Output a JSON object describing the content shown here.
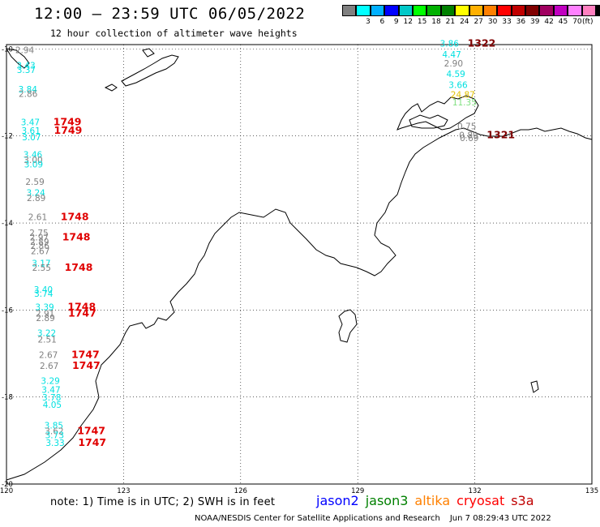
{
  "header": {
    "title": "12:00 – 23:59 UTC 06/05/2022",
    "subtitle": "12 hour collection of altimeter wave heights"
  },
  "legend": {
    "colors": [
      "#808080",
      "#00ffff",
      "#00b0ff",
      "#0000ff",
      "#00c8c8",
      "#00ff00",
      "#00b000",
      "#008000",
      "#ffff00",
      "#ffb000",
      "#ff8000",
      "#ff0000",
      "#c00000",
      "#800000",
      "#a00060",
      "#c000c0",
      "#ff80ff",
      "#ff80c0",
      "#000000"
    ],
    "labels": [
      "3",
      "6",
      "9",
      "12",
      "15",
      "18",
      "21",
      "24",
      "27",
      "30",
      "33",
      "36",
      "39",
      "42",
      "45",
      "70"
    ],
    "unit": "(ft)"
  },
  "axes": {
    "lon_ticks": [
      "120",
      "123",
      "126",
      "129",
      "132",
      "135"
    ],
    "lat_ticks": [
      "-10",
      "-12",
      "-14",
      "-16",
      "-18",
      "-20"
    ]
  },
  "observations": {
    "west_track": [
      {
        "swh": "2.94",
        "lat": -10.1,
        "color": "#808080"
      },
      {
        "swh": "3.43",
        "lat": -10.45,
        "color": "#00e0e0"
      },
      {
        "swh": "3.37",
        "lat": -10.55,
        "color": "#00e0e0"
      },
      {
        "swh": "3.84",
        "lat": -11.0,
        "color": "#00e0e0"
      },
      {
        "swh": "2.86",
        "lat": -11.1,
        "color": "#808080"
      },
      {
        "swh": "3.47",
        "lat": -11.75,
        "color": "#00e0e0",
        "time": "1749"
      },
      {
        "swh": "3.61",
        "lat": -11.95,
        "color": "#00e0e0",
        "time": "1749"
      },
      {
        "swh": "3.07",
        "lat": -12.1,
        "color": "#00e0e0"
      },
      {
        "swh": "3.46",
        "lat": -12.5,
        "color": "#00e0e0"
      },
      {
        "swh": "3.00",
        "lat": -12.62,
        "color": "#808080"
      },
      {
        "swh": "3.09",
        "lat": -12.72,
        "color": "#00e0e0"
      },
      {
        "swh": "2.59",
        "lat": -13.12,
        "color": "#808080"
      },
      {
        "swh": "3.24",
        "lat": -13.38,
        "color": "#00e0e0"
      },
      {
        "swh": "2.89",
        "lat": -13.5,
        "color": "#808080"
      },
      {
        "swh": "2.61",
        "lat": -13.93,
        "color": "#808080",
        "time": "1748"
      },
      {
        "swh": "2.75",
        "lat": -14.3,
        "color": "#808080"
      },
      {
        "swh": "2.97",
        "lat": -14.4,
        "color": "#808080",
        "time": "1748"
      },
      {
        "swh": "2.89",
        "lat": -14.5,
        "color": "#808080"
      },
      {
        "swh": "2.86",
        "lat": -14.6,
        "color": "#808080"
      },
      {
        "swh": "2.67",
        "lat": -14.72,
        "color": "#808080"
      },
      {
        "swh": "3.17",
        "lat": -15.0,
        "color": "#00e0e0"
      },
      {
        "swh": "2.55",
        "lat": -15.1,
        "color": "#808080",
        "time": "1748"
      },
      {
        "swh": "3.40",
        "lat": -15.6,
        "color": "#00e0e0"
      },
      {
        "swh": "3.74",
        "lat": -15.7,
        "color": "#00e0e0"
      },
      {
        "swh": "3.39",
        "lat": -16.0,
        "color": "#00e0e0",
        "time": "1748"
      },
      {
        "swh": "2.91",
        "lat": -16.15,
        "color": "#808080",
        "time": "1747"
      },
      {
        "swh": "2.89",
        "lat": -16.25,
        "color": "#808080"
      },
      {
        "swh": "3.22",
        "lat": -16.6,
        "color": "#00e0e0"
      },
      {
        "swh": "2.51",
        "lat": -16.75,
        "color": "#808080"
      },
      {
        "swh": "2.67",
        "lat": -17.1,
        "color": "#808080",
        "time": "1747"
      },
      {
        "swh": "2.67",
        "lat": -17.35,
        "color": "#808080",
        "time": "1747"
      },
      {
        "swh": "3.29",
        "lat": -17.7,
        "color": "#00e0e0"
      },
      {
        "swh": "3.47",
        "lat": -17.9,
        "color": "#00e0e0"
      },
      {
        "swh": "3.78",
        "lat": -18.08,
        "color": "#00e0e0"
      },
      {
        "swh": "4.05",
        "lat": -18.25,
        "color": "#00e0e0"
      },
      {
        "swh": "3.85",
        "lat": -18.72,
        "color": "#00e0e0"
      },
      {
        "swh": "3.62",
        "lat": -18.85,
        "color": "#808080",
        "time": "1747"
      },
      {
        "swh": "3.73",
        "lat": -18.95,
        "color": "#00e0e0"
      },
      {
        "swh": "3.33",
        "lat": -19.12,
        "color": "#00e0e0",
        "time": "1747"
      }
    ],
    "east_track": [
      {
        "swh": "3.86",
        "lat": -9.95,
        "color": "#00e0e0",
        "time": "1322"
      },
      {
        "swh": "4.47",
        "lat": -10.2,
        "color": "#00e0e0"
      },
      {
        "swh": "2.90",
        "lat": -10.4,
        "color": "#808080"
      },
      {
        "swh": "4.59",
        "lat": -10.65,
        "color": "#00e0e0"
      },
      {
        "swh": "3.66",
        "lat": -10.9,
        "color": "#00e0e0"
      },
      {
        "swh": "24.87",
        "lat": -11.12,
        "color": "#e0c000"
      },
      {
        "swh": "11.35",
        "lat": -11.3,
        "color": "#80e080"
      },
      {
        "swh": "0.75",
        "lat": -11.85,
        "color": "#808080"
      },
      {
        "swh": "0.89",
        "lat": -12.05,
        "color": "#808080",
        "time": "1321"
      },
      {
        "swh": "0.69",
        "lat": -12.12,
        "color": "#808080"
      }
    ]
  },
  "footer": {
    "note": "note:  1) Time is in UTC;  2) SWH is in feet",
    "satellites": [
      {
        "name": "jason2",
        "color": "#0000ff"
      },
      {
        "name": "jason3",
        "color": "#008000"
      },
      {
        "name": "altika",
        "color": "#ff8000"
      },
      {
        "name": "cryosat",
        "color": "#ff0000"
      },
      {
        "name": "s3a",
        "color": "#c00000"
      }
    ],
    "credit": "NOAA/NESDIS Center for Satellite Applications and Research",
    "timestamp": "Jun  7 08:29:43 UTC 2022"
  }
}
